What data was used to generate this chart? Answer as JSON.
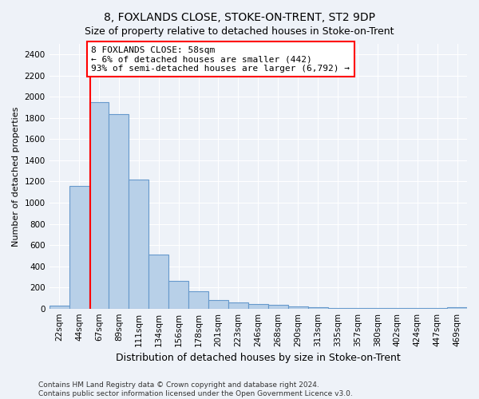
{
  "title": "8, FOXLANDS CLOSE, STOKE-ON-TRENT, ST2 9DP",
  "subtitle": "Size of property relative to detached houses in Stoke-on-Trent",
  "xlabel": "Distribution of detached houses by size in Stoke-on-Trent",
  "ylabel": "Number of detached properties",
  "categories": [
    "22sqm",
    "44sqm",
    "67sqm",
    "89sqm",
    "111sqm",
    "134sqm",
    "156sqm",
    "178sqm",
    "201sqm",
    "223sqm",
    "246sqm",
    "268sqm",
    "290sqm",
    "313sqm",
    "335sqm",
    "357sqm",
    "380sqm",
    "402sqm",
    "424sqm",
    "447sqm",
    "469sqm"
  ],
  "values": [
    25,
    1155,
    1950,
    1840,
    1215,
    510,
    265,
    160,
    80,
    55,
    40,
    38,
    20,
    12,
    8,
    7,
    5,
    4,
    3,
    3,
    15
  ],
  "bar_color": "#b8d0e8",
  "bar_edge_color": "#6699cc",
  "vline_color": "red",
  "vline_pos": 1.575,
  "annotation_line1": "8 FOXLANDS CLOSE: 58sqm",
  "annotation_line2": "← 6% of detached houses are smaller (442)",
  "annotation_line3": "93% of semi-detached houses are larger (6,792) →",
  "annotation_box_color": "white",
  "annotation_box_edge_color": "red",
  "ylim": [
    0,
    2500
  ],
  "yticks": [
    0,
    200,
    400,
    600,
    800,
    1000,
    1200,
    1400,
    1600,
    1800,
    2000,
    2200,
    2400
  ],
  "footer_line1": "Contains HM Land Registry data © Crown copyright and database right 2024.",
  "footer_line2": "Contains public sector information licensed under the Open Government Licence v3.0.",
  "background_color": "#eef2f8",
  "grid_color": "#ffffff",
  "title_fontsize": 10,
  "subtitle_fontsize": 9,
  "ylabel_fontsize": 8,
  "xlabel_fontsize": 9,
  "tick_fontsize": 7.5,
  "annotation_fontsize": 8,
  "footer_fontsize": 6.5
}
